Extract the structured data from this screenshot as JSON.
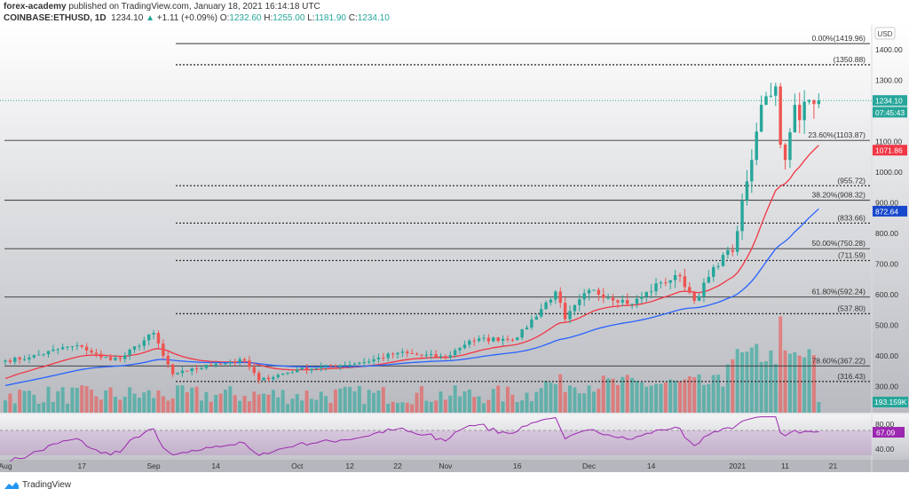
{
  "header": {
    "author": "forex-academy",
    "published": "published on TradingView.com, January 18, 2021 16:14:18 UTC",
    "symbol": "COINBASE:ETHUSD, 1D",
    "last": "1234.10",
    "change": "+1.11 (+0.09%)",
    "o_label": "O:",
    "o": "1232.60",
    "h_label": "H:",
    "h": "1255.00",
    "l_label": "L:",
    "l": "1181.90",
    "c_label": "C:",
    "c": "1234.10"
  },
  "currency": "USD",
  "footer": {
    "brand": "TradingView"
  },
  "colors": {
    "up": "#26a69a",
    "down": "#ef5350",
    "ma_fast": "#f23645",
    "ma_slow": "#2962ff",
    "rsi": "#9c27b0",
    "fib": "#333333"
  },
  "chart_data": {
    "type": "candlestick",
    "title": "COINBASE:ETHUSD, 1D",
    "start_date": "2020-08-01",
    "close_anchors": [
      [
        0,
        385
      ],
      [
        5,
        395
      ],
      [
        13,
        430
      ],
      [
        16,
        430
      ],
      [
        20,
        395
      ],
      [
        24,
        390
      ],
      [
        31,
        475
      ],
      [
        33,
        400
      ],
      [
        35,
        340
      ],
      [
        38,
        350
      ],
      [
        44,
        375
      ],
      [
        50,
        385
      ],
      [
        53,
        320
      ],
      [
        61,
        355
      ],
      [
        70,
        370
      ],
      [
        75,
        380
      ],
      [
        82,
        410
      ],
      [
        92,
        395
      ],
      [
        97,
        450
      ],
      [
        107,
        460
      ],
      [
        115,
        610
      ],
      [
        117,
        520
      ],
      [
        122,
        615
      ],
      [
        131,
        570
      ],
      [
        137,
        640
      ],
      [
        141,
        660
      ],
      [
        144,
        580
      ],
      [
        150,
        730
      ],
      [
        152,
        740
      ],
      [
        155,
        970
      ],
      [
        156,
        1040
      ],
      [
        158,
        1220
      ],
      [
        161,
        1280
      ],
      [
        162,
        1090
      ],
      [
        163,
        1040
      ],
      [
        164,
        1130
      ],
      [
        165,
        1220
      ],
      [
        166,
        1170
      ],
      [
        167,
        1230
      ],
      [
        168,
        1235
      ],
      [
        170,
        1234.1
      ]
    ],
    "ma_seed": {
      "fast": 320,
      "slow": 300
    },
    "y_ticks": [
      "1400.00",
      "1300.00",
      "1100.00",
      "1000.00",
      "900.00",
      "800.00",
      "700.00",
      "600.00",
      "500.00",
      "400.00",
      "300.00"
    ],
    "y_tick_values": [
      1400,
      1300,
      1100,
      1000,
      900,
      800,
      700,
      600,
      500,
      400,
      300
    ],
    "x_ticks": [
      {
        "label": "Aug",
        "day": 0
      },
      {
        "label": "17",
        "day": 16
      },
      {
        "label": "Sep",
        "day": 31
      },
      {
        "label": "14",
        "day": 44
      },
      {
        "label": "Oct",
        "day": 61
      },
      {
        "label": "12",
        "day": 72
      },
      {
        "label": "22",
        "day": 82
      },
      {
        "label": "Nov",
        "day": 92
      },
      {
        "label": "16",
        "day": 107
      },
      {
        "label": "Dec",
        "day": 122
      },
      {
        "label": "14",
        "day": 135
      },
      {
        "label": "2021",
        "day": 153
      },
      {
        "label": "11",
        "day": 163
      },
      {
        "label": "21",
        "day": 173
      }
    ],
    "fib_levels": [
      {
        "label": "0.00%(1419.96)",
        "value": 1419.96,
        "style": "solid"
      },
      {
        "label": "(1350.88)",
        "value": 1350.88,
        "style": "dotted"
      },
      {
        "label": "23.60%(1103.87)",
        "value": 1103.87,
        "style": "solid"
      },
      {
        "label": "(955.72)",
        "value": 955.72,
        "style": "dotted"
      },
      {
        "label": "38.20%(908.32)",
        "value": 908.32,
        "style": "solid"
      },
      {
        "label": "(833.66)",
        "value": 833.66,
        "style": "dotted"
      },
      {
        "label": "50.00%(750.28)",
        "value": 750.28,
        "style": "solid"
      },
      {
        "label": "(711.59)",
        "value": 711.59,
        "style": "dotted"
      },
      {
        "label": "61.80%(592.24)",
        "value": 592.24,
        "style": "solid"
      },
      {
        "label": "(537.80)",
        "value": 537.8,
        "style": "dotted"
      },
      {
        "label": "78.60%(367.22)",
        "value": 367.22,
        "style": "solid"
      },
      {
        "label": "(316.43)",
        "value": 316.43,
        "style": "dotted"
      }
    ],
    "price_labels": [
      {
        "text": "1234.10",
        "value": 1234.1,
        "color": "#26a69a"
      },
      {
        "text": "07:45:43",
        "value": 1196,
        "color": "#26a69a"
      },
      {
        "text": "1071.86",
        "value": 1071.86,
        "color": "#f23645"
      },
      {
        "text": "872.64",
        "value": 872.64,
        "color": "#1848cc"
      }
    ],
    "volume_label": "193.159K",
    "last_volume_k": 193.159,
    "rsi_ticks": [
      "80.00",
      "40.00"
    ],
    "rsi_tick_values": [
      80,
      40
    ],
    "rsi_label": "67.09",
    "rsi_band": [
      30,
      70
    ]
  }
}
